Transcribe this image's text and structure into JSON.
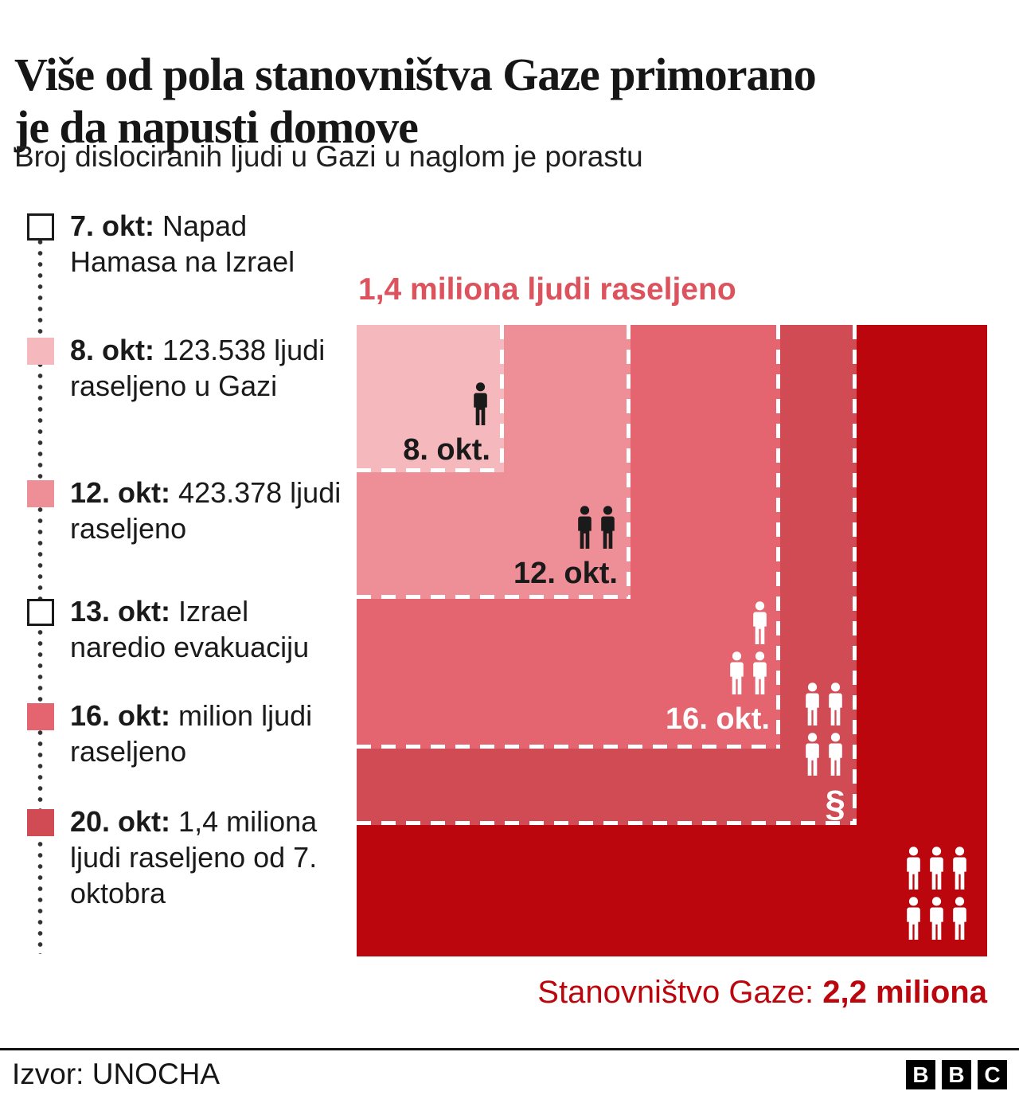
{
  "header": {
    "title": "Više od pola stanovništva Gaze primorano je da napusti domove",
    "title_lines": [
      "Više od pola stanovništva Gaze primorano",
      "je da napusti domove"
    ],
    "subtitle": "Broj dislociranih ljudi u Gazi u naglom je porastu"
  },
  "timeline": {
    "items": [
      {
        "date": "7. okt:",
        "text": "Napad Hamasa na Izrael",
        "swatch_color": "#ffffff",
        "swatch_border": "#1a1a1a"
      },
      {
        "date": "8. okt:",
        "text": "123.538 ljudi raseljeno u Gazi",
        "swatch_color": "#f5b8bd",
        "swatch_border": null
      },
      {
        "date": "12. okt:",
        "text": "423.378 ljudi raseljeno",
        "swatch_color": "#ee8e97",
        "swatch_border": null
      },
      {
        "date": "13. okt:",
        "text": "Izrael naredio evakuaciju",
        "swatch_color": "#ffffff",
        "swatch_border": "#1a1a1a"
      },
      {
        "date": "16. okt:",
        "text": "milion ljudi raseljeno",
        "swatch_color": "#e4656f",
        "swatch_border": null
      },
      {
        "date": "20. okt:",
        "text": "1,4 miliona ljudi raseljeno od 7. oktobra",
        "swatch_color": "#d14b54",
        "swatch_border": null
      }
    ]
  },
  "chart_data": {
    "type": "area",
    "variant": "nested-proportional-squares-pictogram",
    "title": "1,4 miliona ljudi raseljeno",
    "categories": [
      "8. okt.",
      "12. okt.",
      "16. okt.",
      "20. okt.",
      "Stanovništvo Gaze"
    ],
    "values": [
      123538,
      423378,
      1000000,
      1400000,
      2200000
    ],
    "unit": "ljudi raseljeno (kumulativno)",
    "total_annotation": "Stanovništvo Gaze: 2,2 miliona",
    "grid": false,
    "legend_position": "left-timeline"
  },
  "chart": {
    "top_label": "1,4 miliona ljudi raseljeno",
    "top_label_color": "#dc535e",
    "population_label_prefix": "Stanovništvo Gaze: ",
    "population_label_bold": "2,2 miliona",
    "population_label_color": "#ba060c",
    "dash_color": "#ffffff",
    "partial_icon_glyph": "§",
    "regions": [
      {
        "name": "population-total",
        "label": "",
        "label_color": "",
        "color": "#ba060c",
        "icon_color": "#ffffff",
        "icon_rows": [
          3,
          3
        ],
        "has_dash": false,
        "has_partial_glyph": false
      },
      {
        "name": "okt-20",
        "label": "",
        "label_color": "",
        "color": "#d14b54",
        "icon_color": "#ffffff",
        "icon_rows": [
          2,
          2
        ],
        "has_dash": true,
        "has_partial_glyph": true
      },
      {
        "name": "okt-16",
        "label": "16. okt.",
        "label_color": "#ffffff",
        "color": "#e4656f",
        "icon_color": "#ffffff",
        "icon_rows": [
          1,
          2
        ],
        "has_dash": true,
        "has_partial_glyph": false
      },
      {
        "name": "okt-12",
        "label": "12. okt.",
        "label_color": "#1a1a1a",
        "color": "#ee8e97",
        "icon_color": "#1a1a1a",
        "icon_rows": [
          2
        ],
        "has_dash": true,
        "has_partial_glyph": false
      },
      {
        "name": "okt-8",
        "label": "8. okt.",
        "label_color": "#1a1a1a",
        "color": "#f5b8bd",
        "icon_color": "#1a1a1a",
        "icon_rows": [
          1
        ],
        "has_dash": true,
        "has_partial_glyph": false
      }
    ]
  },
  "footer": {
    "source": "Izvor: UNOCHA",
    "logo_letters": [
      "B",
      "B",
      "C"
    ]
  }
}
